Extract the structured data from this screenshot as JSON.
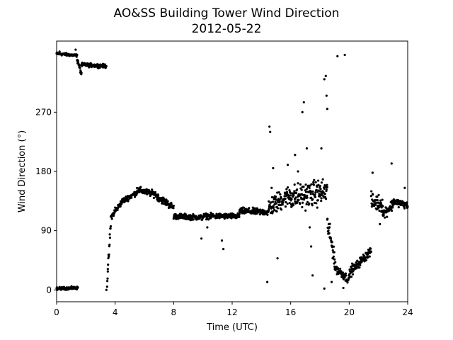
{
  "chart_data": {
    "type": "scatter",
    "title": "AO&SS Building Tower Wind Direction",
    "subtitle": "2012-05-22",
    "xlabel": "Time (UTC)",
    "ylabel": "Wind Direction (°)",
    "xlim": [
      0,
      24
    ],
    "ylim": [
      -18,
      378
    ],
    "xticks": [
      0,
      4,
      8,
      12,
      16,
      20,
      24
    ],
    "yticks": [
      0,
      90,
      180,
      270
    ],
    "grid": false,
    "legend": "none",
    "marker_color": "#000000",
    "series": [
      {
        "segments": [
          {
            "x": [
              0,
              1.4
            ],
            "y": [
              359,
              356
            ],
            "spread": 3
          },
          {
            "x": [
              0,
              1.45
            ],
            "y": [
              2,
              3
            ],
            "spread": 3
          },
          {
            "x": [
              1.4,
              1.7
            ],
            "y": [
              350,
              328
            ],
            "spread": 6
          },
          {
            "x": [
              1.7,
              3.4
            ],
            "y": [
              342,
              340
            ],
            "spread": 4
          },
          {
            "x": [
              3.45,
              3.7
            ],
            "y": [
              10,
              100
            ],
            "spread": 12
          },
          {
            "x": [
              3.7,
              4.5
            ],
            "y": [
              110,
              135
            ],
            "spread": 6
          },
          {
            "x": [
              4.5,
              5.5
            ],
            "y": [
              135,
              148
            ],
            "spread": 6
          },
          {
            "x": [
              5.5,
              6.8
            ],
            "y": [
              152,
              145
            ],
            "spread": 7
          },
          {
            "x": [
              6.8,
              8.0
            ],
            "y": [
              143,
              125
            ],
            "spread": 8
          },
          {
            "x": [
              8.0,
              10.0
            ],
            "y": [
              112,
              110
            ],
            "spread": 6
          },
          {
            "x": [
              10.0,
              12.5
            ],
            "y": [
              112,
              112
            ],
            "spread": 6
          },
          {
            "x": [
              12.5,
              14.5
            ],
            "y": [
              120,
              118
            ],
            "spread": 7
          },
          {
            "x": [
              14.5,
              16.0
            ],
            "y": [
              125,
              145
            ],
            "spread": 22
          },
          {
            "x": [
              16.0,
              18.5
            ],
            "y": [
              140,
              150
            ],
            "spread": 28
          },
          {
            "x": [
              18.5,
              19.0
            ],
            "y": [
              100,
              50
            ],
            "spread": 22
          },
          {
            "x": [
              19.0,
              20.0
            ],
            "y": [
              35,
              15
            ],
            "spread": 10
          },
          {
            "x": [
              20.0,
              21.5
            ],
            "y": [
              25,
              60
            ],
            "spread": 10
          },
          {
            "x": [
              21.5,
              22.3
            ],
            "y": [
              135,
              130
            ],
            "spread": 18
          },
          {
            "x": [
              22.3,
              23.0
            ],
            "y": [
              115,
              130
            ],
            "spread": 12
          },
          {
            "x": [
              23.0,
              24.0
            ],
            "y": [
              135,
              128
            ],
            "spread": 8
          }
        ],
        "outliers": [
          [
            1.3,
            365
          ],
          [
            0.2,
            362
          ],
          [
            3.4,
            0
          ],
          [
            3.5,
            28
          ],
          [
            4.0,
            125
          ],
          [
            9.9,
            78
          ],
          [
            10.3,
            95
          ],
          [
            11.3,
            75
          ],
          [
            11.4,
            62
          ],
          [
            14.4,
            12
          ],
          [
            14.55,
            248
          ],
          [
            14.6,
            240
          ],
          [
            14.7,
            155
          ],
          [
            14.8,
            185
          ],
          [
            15.0,
            120
          ],
          [
            15.1,
            48
          ],
          [
            15.8,
            190
          ],
          [
            16.3,
            205
          ],
          [
            16.5,
            180
          ],
          [
            16.8,
            270
          ],
          [
            16.9,
            285
          ],
          [
            17.1,
            215
          ],
          [
            17.3,
            95
          ],
          [
            17.4,
            66
          ],
          [
            17.5,
            22
          ],
          [
            18.1,
            215
          ],
          [
            18.3,
            320
          ],
          [
            18.4,
            325
          ],
          [
            18.45,
            295
          ],
          [
            18.5,
            275
          ],
          [
            18.6,
            100
          ],
          [
            18.3,
            2
          ],
          [
            18.8,
            12
          ],
          [
            19.2,
            355
          ],
          [
            19.7,
            357
          ],
          [
            19.6,
            3
          ],
          [
            20.2,
            40
          ],
          [
            21.6,
            178
          ],
          [
            22.1,
            100
          ],
          [
            22.9,
            192
          ],
          [
            23.8,
            155
          ]
        ]
      }
    ]
  }
}
